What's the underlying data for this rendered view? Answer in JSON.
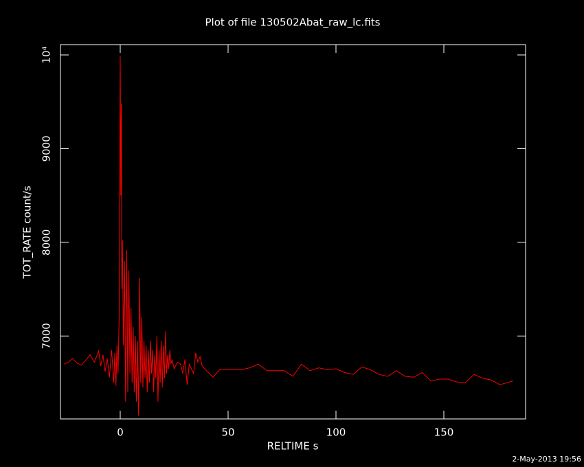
{
  "chart_data": {
    "type": "line",
    "title": "Plot of file 130502Abat_raw_lc.fits",
    "x_label": "RELTIME  s",
    "y_label": "TOT_RATE  count/s",
    "footer": "2-May-2013 19:56",
    "xlim": [
      -27.7,
      187.9
    ],
    "ylim": [
      6115,
      10110
    ],
    "xticks": [
      0,
      50,
      100,
      150
    ],
    "yticks": [
      7000,
      8000,
      9000,
      {
        "value": 10000,
        "label": "10⁴"
      }
    ],
    "grid": false,
    "series": [
      {
        "name": "TOT_RATE",
        "color": "#ff0000",
        "x": [
          -26,
          -24,
          -22,
          -20,
          -18,
          -16,
          -14,
          -12,
          -10,
          -9,
          -8,
          -7,
          -6,
          -5,
          -4,
          -3,
          -2.5,
          -2,
          -1.5,
          -1,
          -0.5,
          0,
          0.25,
          0.5,
          0.75,
          1,
          1.5,
          2,
          2.5,
          3,
          3.5,
          4,
          4.5,
          5,
          5.5,
          6,
          6.5,
          7,
          7.5,
          8,
          8.5,
          9,
          9.5,
          10,
          10.5,
          11,
          11.5,
          12,
          12.5,
          13,
          13.5,
          14,
          14.5,
          15,
          15.5,
          16,
          16.5,
          17,
          17.5,
          18,
          18.5,
          19,
          19.5,
          20,
          20.5,
          21,
          21.5,
          22,
          22.5,
          23,
          23.5,
          24,
          25,
          26.5,
          28,
          29,
          30,
          31,
          32,
          33,
          34,
          35,
          36,
          37,
          38,
          40,
          43,
          46,
          51,
          56,
          60,
          64,
          68,
          72,
          76,
          80,
          84,
          88,
          92,
          96,
          100,
          104,
          108,
          112,
          116,
          120,
          124,
          128,
          132,
          136,
          140,
          144,
          148,
          152,
          156,
          160,
          164,
          168,
          172,
          176,
          182
        ],
        "values": [
          6700,
          6720,
          6760,
          6710,
          6690,
          6740,
          6800,
          6720,
          6840,
          6680,
          6800,
          6620,
          6760,
          6560,
          6850,
          6500,
          6820,
          6470,
          6900,
          6600,
          7200,
          9990,
          8500,
          9480,
          7500,
          8020,
          6900,
          7800,
          6300,
          7920,
          6400,
          7700,
          6600,
          7300,
          6500,
          7100,
          6400,
          7000,
          6300,
          6950,
          6150,
          7620,
          6500,
          7200,
          6450,
          6950,
          6550,
          6900,
          6400,
          6850,
          6500,
          6950,
          6600,
          6850,
          6400,
          6800,
          6550,
          7000,
          6300,
          6850,
          6500,
          6950,
          6450,
          6900,
          6550,
          7050,
          6600,
          6800,
          6650,
          6850,
          6700,
          6750,
          6650,
          6720,
          6700,
          6600,
          6750,
          6480,
          6700,
          6650,
          6600,
          6820,
          6720,
          6780,
          6680,
          6630,
          6560,
          6640,
          6640,
          6640,
          6660,
          6700,
          6630,
          6630,
          6630,
          6570,
          6700,
          6630,
          6660,
          6640,
          6650,
          6610,
          6590,
          6670,
          6640,
          6590,
          6570,
          6630,
          6570,
          6560,
          6610,
          6520,
          6540,
          6540,
          6510,
          6500,
          6590,
          6550,
          6530,
          6480,
          6520
        ]
      }
    ]
  }
}
